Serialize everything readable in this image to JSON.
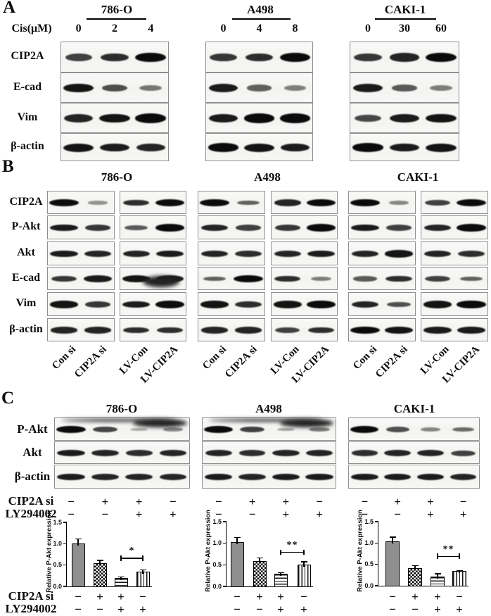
{
  "colors": {
    "background": "#ffffff",
    "band": "#0b0b0b",
    "blot_background": "#f6f6f4",
    "blot_border": "#8f8f8f",
    "bar_fill": "#8f8f8f",
    "text": "#0d0d0d"
  },
  "panel_a": {
    "letter": "A",
    "dose_label": "Cis(μM)",
    "rows": [
      "CIP2A",
      "E-cad",
      "Vim",
      "β-actin"
    ],
    "groups": [
      {
        "title": "786-O",
        "doses": [
          "0",
          "2",
          "4"
        ],
        "bands": [
          [
            0.7,
            0.8,
            1.0
          ],
          [
            0.95,
            0.62,
            0.38
          ],
          [
            0.85,
            0.95,
            1.0
          ],
          [
            0.95,
            0.9,
            0.85
          ]
        ]
      },
      {
        "title": "A498",
        "doses": [
          "0",
          "4",
          "8"
        ],
        "bands": [
          [
            0.75,
            0.8,
            1.0
          ],
          [
            0.9,
            0.5,
            0.33
          ],
          [
            0.9,
            1.0,
            1.0
          ],
          [
            1.0,
            0.95,
            0.9
          ]
        ]
      },
      {
        "title": "CAKI-1",
        "doses": [
          "0",
          "30",
          "60"
        ],
        "bands": [
          [
            0.75,
            0.85,
            1.0
          ],
          [
            0.9,
            0.55,
            0.35
          ],
          [
            0.65,
            0.9,
            0.95
          ],
          [
            1.0,
            0.9,
            0.95
          ]
        ]
      }
    ]
  },
  "panel_b": {
    "letter": "B",
    "rows": [
      "CIP2A",
      "P-Akt",
      "Akt",
      "E-cad",
      "Vim",
      "β-actin"
    ],
    "lanes": [
      "Con si",
      "CIP2A si",
      "LV-Con",
      "LV-CIP2A"
    ],
    "groups": [
      {
        "title": "786-O",
        "smear_ecad": true,
        "bands": [
          [
            1.0,
            0.22,
            0.8,
            1.0
          ],
          [
            0.9,
            0.75,
            0.55,
            1.0
          ],
          [
            0.9,
            0.85,
            0.85,
            0.9
          ],
          [
            0.75,
            0.9,
            0.95,
            0.9
          ],
          [
            0.95,
            0.75,
            0.9,
            1.0
          ],
          [
            0.85,
            0.85,
            0.8,
            0.8
          ]
        ]
      },
      {
        "title": "A498",
        "smear_ecad": false,
        "bands": [
          [
            1.0,
            0.5,
            0.85,
            1.0
          ],
          [
            0.85,
            0.7,
            0.75,
            1.0
          ],
          [
            0.85,
            0.8,
            0.85,
            0.9
          ],
          [
            0.5,
            1.0,
            0.8,
            0.35
          ],
          [
            0.95,
            0.8,
            0.95,
            1.0
          ],
          [
            0.85,
            0.85,
            0.7,
            0.8
          ]
        ]
      },
      {
        "title": "CAKI-1",
        "smear_ecad": false,
        "bands": [
          [
            1.0,
            0.3,
            0.7,
            1.0
          ],
          [
            0.9,
            0.7,
            0.85,
            1.0
          ],
          [
            0.85,
            0.95,
            0.85,
            0.8
          ],
          [
            0.55,
            0.8,
            0.7,
            0.5
          ],
          [
            0.85,
            0.6,
            0.95,
            1.0
          ],
          [
            1.0,
            0.95,
            0.9,
            0.9
          ]
        ]
      }
    ]
  },
  "panel_c": {
    "letter": "C",
    "rows": [
      "P-Akt",
      "Akt",
      "β-actin"
    ],
    "treatments": [
      {
        "label": "CIP2A si",
        "values": [
          "−",
          "+",
          "+",
          "−"
        ]
      },
      {
        "label": "LY294002",
        "values": [
          "−",
          "−",
          "+",
          "+"
        ]
      }
    ],
    "groups": [
      {
        "title": "786-O",
        "smear": 0.12,
        "bands": [
          [
            1.0,
            0.65,
            0.08,
            0.28
          ],
          [
            0.9,
            0.85,
            0.8,
            0.85
          ],
          [
            0.9,
            0.85,
            0.85,
            0.85
          ]
        ]
      },
      {
        "title": "A498",
        "smear": 0.45,
        "bands": [
          [
            1.0,
            0.7,
            0.12,
            0.35
          ],
          [
            0.85,
            0.8,
            0.85,
            0.85
          ],
          [
            0.9,
            0.85,
            0.9,
            0.9
          ]
        ]
      },
      {
        "title": "CAKI-1",
        "smear": 0.0,
        "bands": [
          [
            1.0,
            0.6,
            0.3,
            0.45
          ],
          [
            0.8,
            0.85,
            0.85,
            0.7
          ],
          [
            0.9,
            0.9,
            0.9,
            0.85
          ]
        ]
      }
    ]
  },
  "chart_data": [
    {
      "type": "bar",
      "title": "786-O",
      "ylabel": "Relative P-Akt expression",
      "ylim": [
        0,
        1.5
      ],
      "yticks": [
        "1.5",
        "1.0",
        "0.5",
        "0.0"
      ],
      "grid": false,
      "legend": "none",
      "values": [
        1.0,
        0.54,
        0.19,
        0.34
      ],
      "errors": [
        0.11,
        0.07,
        0.03,
        0.05
      ],
      "bar_styles": [
        "solid",
        "checker",
        "hstripe",
        "vstripe"
      ],
      "significance": {
        "between": [
          2,
          3
        ],
        "label": "*",
        "height": 0.67
      },
      "x_rows": [
        {
          "label": "CIP2A si",
          "values": [
            "−",
            "+",
            "+",
            "−"
          ]
        },
        {
          "label": "LY294002",
          "values": [
            "−",
            "−",
            "+",
            "+"
          ]
        }
      ]
    },
    {
      "type": "bar",
      "title": "A498",
      "ylabel": "Relative P-Akt expression",
      "ylim": [
        0,
        1.5
      ],
      "yticks": [
        "1.5",
        "1.0",
        "0.5",
        "0.0"
      ],
      "grid": false,
      "legend": "none",
      "values": [
        1.03,
        0.59,
        0.3,
        0.51
      ],
      "errors": [
        0.1,
        0.07,
        0.02,
        0.06
      ],
      "bar_styles": [
        "solid",
        "checker",
        "hstripe",
        "vstripe"
      ],
      "significance": {
        "between": [
          2,
          3
        ],
        "label": "**",
        "height": 0.8
      },
      "x_rows": [
        {
          "label": "CIP2A si",
          "values": [
            "−",
            "+",
            "+",
            "−"
          ]
        },
        {
          "label": "LY294002",
          "values": [
            "−",
            "−",
            "+",
            "+"
          ]
        }
      ]
    },
    {
      "type": "bar",
      "title": "CAKI-1",
      "ylabel": "Relative P-Akt expression",
      "ylim": [
        0,
        1.5
      ],
      "yticks": [
        "1.5",
        "1.0",
        "0.5",
        "0.0"
      ],
      "grid": false,
      "legend": "none",
      "values": [
        1.04,
        0.42,
        0.22,
        0.34
      ],
      "errors": [
        0.1,
        0.05,
        0.06,
        0.02
      ],
      "bar_styles": [
        "solid",
        "checker",
        "hstripe",
        "vstripe"
      ],
      "significance": {
        "between": [
          2,
          3
        ],
        "label": "**",
        "height": 0.7
      },
      "x_rows": [
        {
          "label": "CIP2A si",
          "values": [
            "−",
            "+",
            "+",
            "−"
          ]
        },
        {
          "label": "LY294002",
          "values": [
            "−",
            "−",
            "+",
            "+"
          ]
        }
      ]
    }
  ]
}
